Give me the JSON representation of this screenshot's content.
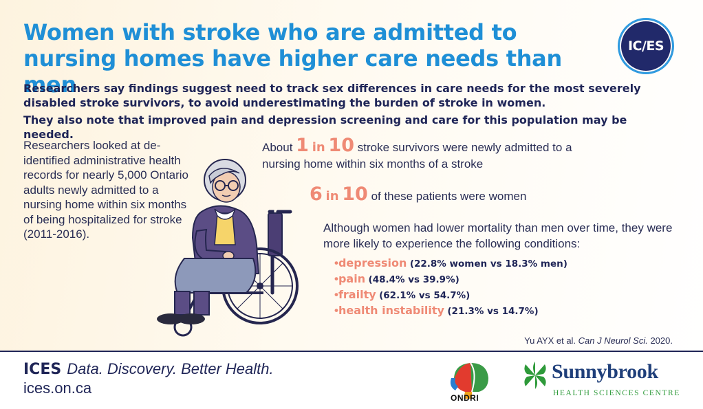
{
  "title": "Women with stroke who are admitted to nursing homes have higher care needs than men",
  "logo_text": "IC/ES",
  "subtitle1": "Researchers say findings suggest need to track sex differences in care needs for the most severely disabled stroke survivors, to avoid underestimating the burden of stroke in women.",
  "subtitle2": "They also note that improved pain and depression screening and care for this population may be needed.",
  "method": "Researchers looked at de-identified administrative health records for nearly 5,000 Ontario adults newly admitted to a nursing home within six months of being hospitalized for stroke (2011-2016).",
  "stat1": {
    "prefix": "About",
    "num1": "1",
    "in": "in",
    "num2": "10",
    "text": "stroke survivors were newly admitted to a nursing home within six months of a stroke"
  },
  "stat2": {
    "num1": "6",
    "in": "in",
    "num2": "10",
    "text": "of these patients were women"
  },
  "intro": "Although women had lower mortality than men over time, they were more likely to experience the following conditions:",
  "conditions": [
    {
      "bullet": "•",
      "name": "depression",
      "value": "(22.8% women vs 18.3% men)"
    },
    {
      "bullet": "•",
      "name": "pain",
      "value": "(48.4% vs 39.9%)"
    },
    {
      "bullet": "•",
      "name": "frailty",
      "value": "(62.1% vs 54.7%)"
    },
    {
      "bullet": "•",
      "name": "health instability",
      "value": "(21.3% vs 14.7%)"
    }
  ],
  "citation": {
    "authors": "Yu AYX  et al.",
    "journal": "Can J Neurol Sci.",
    "year": "2020."
  },
  "footer": {
    "org": "ICES",
    "tagline": "Data. Discovery. Better Health.",
    "url": "ices.on.ca",
    "ondri": "ONDRI",
    "sunnybrook": "Sunnybrook",
    "sunnybrook_sub": "HEALTH SCIENCES CENTRE"
  },
  "colors": {
    "title_blue": "#1f8fd6",
    "navy": "#1f2557",
    "accent": "#ef8a75",
    "sunnybrook_green": "#2e9a3a"
  },
  "illustration": "woman-in-wheelchair-illustration"
}
